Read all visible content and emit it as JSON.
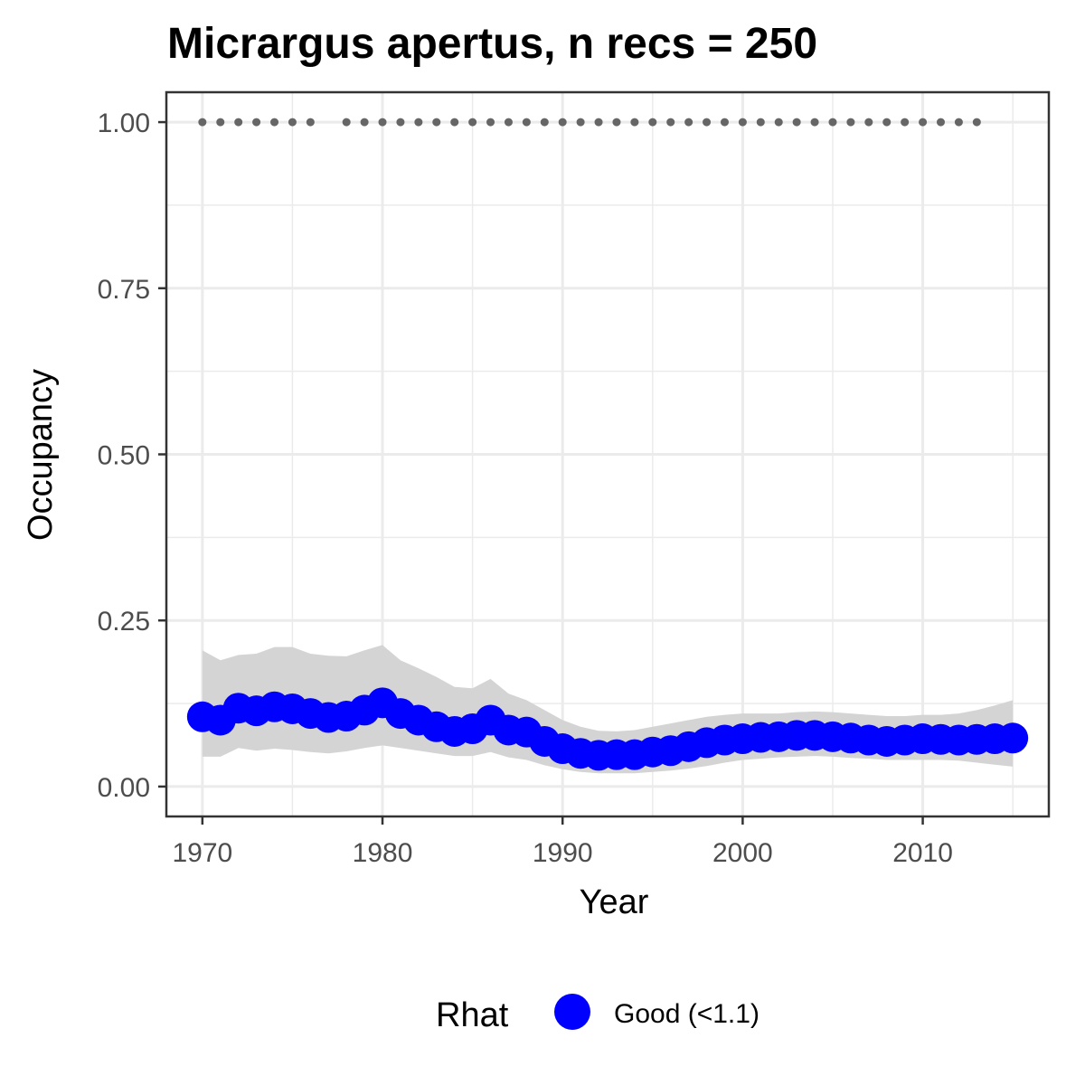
{
  "chart_data": {
    "type": "line",
    "title": "Micrargus apertus, n recs = 250",
    "xlabel": "Year",
    "ylabel": "Occupancy",
    "xlim": [
      1968,
      2017
    ],
    "ylim": [
      -0.045,
      1.045
    ],
    "x_ticks": [
      1970,
      1980,
      1990,
      2000,
      2010
    ],
    "x_tick_labels": [
      "1970",
      "1980",
      "1990",
      "2000",
      "2010"
    ],
    "y_ticks": [
      0,
      0.25,
      0.5,
      0.75,
      1.0
    ],
    "y_tick_labels": [
      "0.00",
      "0.25",
      "0.50",
      "0.75",
      "1.00"
    ],
    "grid": true,
    "legend": {
      "title": "Rhat",
      "position": "bottom",
      "entries": [
        {
          "label": "Good (<1.1)",
          "color": "#0000ff"
        }
      ]
    },
    "series": [
      {
        "name": "Good (<1.1)",
        "color": "#0000ff",
        "x": [
          1970,
          1971,
          1972,
          1973,
          1974,
          1975,
          1976,
          1977,
          1978,
          1979,
          1980,
          1981,
          1982,
          1983,
          1984,
          1985,
          1986,
          1987,
          1988,
          1989,
          1990,
          1991,
          1992,
          1993,
          1994,
          1995,
          1996,
          1997,
          1998,
          1999,
          2000,
          2001,
          2002,
          2003,
          2004,
          2005,
          2006,
          2007,
          2008,
          2009,
          2010,
          2011,
          2012,
          2013,
          2014,
          2015
        ],
        "y": [
          0.105,
          0.1,
          0.118,
          0.114,
          0.12,
          0.117,
          0.11,
          0.104,
          0.106,
          0.115,
          0.126,
          0.11,
          0.1,
          0.09,
          0.083,
          0.087,
          0.1,
          0.085,
          0.082,
          0.068,
          0.057,
          0.05,
          0.047,
          0.048,
          0.048,
          0.052,
          0.054,
          0.06,
          0.066,
          0.07,
          0.072,
          0.074,
          0.075,
          0.077,
          0.077,
          0.075,
          0.073,
          0.07,
          0.068,
          0.07,
          0.072,
          0.071,
          0.07,
          0.071,
          0.072,
          0.073
        ],
        "upper": [
          0.205,
          0.19,
          0.198,
          0.2,
          0.21,
          0.21,
          0.2,
          0.197,
          0.196,
          0.205,
          0.213,
          0.19,
          0.178,
          0.165,
          0.15,
          0.148,
          0.162,
          0.14,
          0.13,
          0.115,
          0.1,
          0.09,
          0.084,
          0.083,
          0.085,
          0.09,
          0.095,
          0.1,
          0.105,
          0.108,
          0.11,
          0.11,
          0.11,
          0.112,
          0.113,
          0.112,
          0.11,
          0.108,
          0.106,
          0.106,
          0.108,
          0.108,
          0.11,
          0.115,
          0.122,
          0.13
        ],
        "lower": [
          0.045,
          0.045,
          0.058,
          0.054,
          0.057,
          0.055,
          0.052,
          0.05,
          0.053,
          0.058,
          0.062,
          0.058,
          0.054,
          0.05,
          0.046,
          0.046,
          0.052,
          0.044,
          0.04,
          0.032,
          0.026,
          0.022,
          0.02,
          0.02,
          0.02,
          0.022,
          0.024,
          0.027,
          0.031,
          0.036,
          0.04,
          0.042,
          0.044,
          0.045,
          0.046,
          0.045,
          0.043,
          0.042,
          0.04,
          0.04,
          0.04,
          0.04,
          0.039,
          0.036,
          0.033,
          0.03
        ]
      },
      {
        "name": "",
        "color": "#666666",
        "x": [
          1970,
          1971,
          1972,
          1973,
          1974,
          1975,
          1976,
          1978,
          1979,
          1980,
          1981,
          1982,
          1983,
          1984,
          1985,
          1986,
          1987,
          1988,
          1989,
          1990,
          1991,
          1992,
          1993,
          1994,
          1995,
          1996,
          1997,
          1998,
          1999,
          2000,
          2001,
          2002,
          2003,
          2004,
          2005,
          2006,
          2007,
          2008,
          2009,
          2010,
          2011,
          2012,
          2013
        ],
        "y": [
          1,
          1,
          1,
          1,
          1,
          1,
          1,
          1,
          1,
          1,
          1,
          1,
          1,
          1,
          1,
          1,
          1,
          1,
          1,
          1,
          1,
          1,
          1,
          1,
          1,
          1,
          1,
          1,
          1,
          1,
          1,
          1,
          1,
          1,
          1,
          1,
          1,
          1,
          1,
          1,
          1,
          1,
          1
        ]
      }
    ]
  }
}
